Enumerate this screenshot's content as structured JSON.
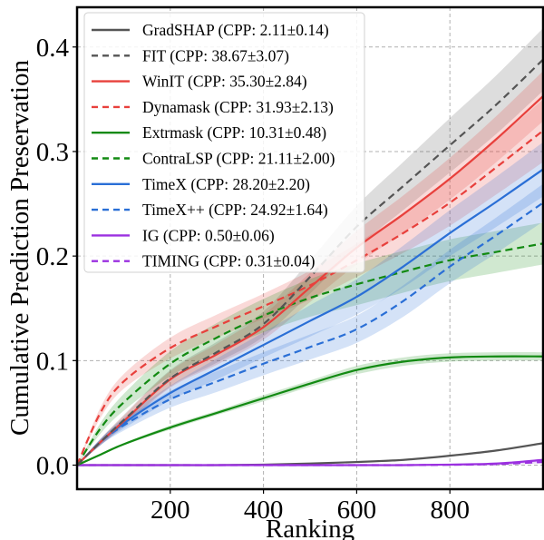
{
  "chart_data": {
    "type": "line",
    "title": "",
    "xlabel": "Ranking",
    "ylabel": "Cumulative Prediction Preservation",
    "xlim": [
      0,
      1000
    ],
    "ylim": [
      -0.023,
      0.438
    ],
    "xticks": [
      200,
      400,
      600,
      800
    ],
    "xtick_labels": [
      "200",
      "400",
      "600",
      "800"
    ],
    "yticks": [
      0.0,
      0.1,
      0.2,
      0.3,
      0.4
    ],
    "ytick_labels": [
      "0.0",
      "0.1",
      "0.2",
      "0.3",
      "0.4"
    ],
    "grid": true,
    "legend_position": "top-left",
    "x": [
      0,
      50,
      100,
      200,
      300,
      400,
      500,
      600,
      700,
      800,
      900,
      1000
    ],
    "series": [
      {
        "name": "GradSHAP (CPP: 2.11±0.14)",
        "color": "#555555",
        "dashed": false,
        "y": [
          0,
          0,
          0,
          0,
          0,
          0.0005,
          0.0015,
          0.003,
          0.005,
          0.009,
          0.014,
          0.021
        ],
        "std": [
          0,
          0,
          0,
          0,
          0,
          0,
          0,
          0,
          0,
          0.001,
          0.001,
          0.001
        ]
      },
      {
        "name": "FIT (CPP: 38.67±3.07)",
        "color": "#555555",
        "dashed": true,
        "y": [
          0,
          0.022,
          0.043,
          0.083,
          0.108,
          0.135,
          0.18,
          0.228,
          0.267,
          0.306,
          0.345,
          0.388
        ],
        "std": [
          0,
          0.003,
          0.005,
          0.008,
          0.01,
          0.012,
          0.016,
          0.02,
          0.023,
          0.026,
          0.028,
          0.03
        ]
      },
      {
        "name": "WinIT (CPP: 35.30±2.84)",
        "color": "#e8403c",
        "dashed": false,
        "y": [
          0,
          0.022,
          0.042,
          0.082,
          0.106,
          0.132,
          0.17,
          0.208,
          0.24,
          0.274,
          0.312,
          0.353
        ],
        "std": [
          0,
          0.003,
          0.005,
          0.008,
          0.01,
          0.012,
          0.014,
          0.016,
          0.018,
          0.02,
          0.022,
          0.024
        ]
      },
      {
        "name": "Dynamask (CPP: 31.93±2.13)",
        "color": "#e8403c",
        "dashed": true,
        "y": [
          0,
          0.05,
          0.08,
          0.112,
          0.133,
          0.152,
          0.172,
          0.196,
          0.222,
          0.251,
          0.285,
          0.32
        ],
        "std": [
          0,
          0.005,
          0.007,
          0.01,
          0.011,
          0.012,
          0.014,
          0.016,
          0.019,
          0.022,
          0.026,
          0.03
        ]
      },
      {
        "name": "Extrmask (CPP: 10.31±0.48)",
        "color": "#128a12",
        "dashed": false,
        "y": [
          0,
          0.01,
          0.02,
          0.036,
          0.05,
          0.064,
          0.078,
          0.091,
          0.099,
          0.103,
          0.104,
          0.104
        ],
        "std": [
          0,
          0.001,
          0.001,
          0.002,
          0.002,
          0.003,
          0.003,
          0.004,
          0.004,
          0.004,
          0.004,
          0.004
        ]
      },
      {
        "name": "ContraLSP (CPP: 21.11±2.00)",
        "color": "#128a12",
        "dashed": true,
        "y": [
          0,
          0.035,
          0.06,
          0.097,
          0.122,
          0.143,
          0.16,
          0.173,
          0.185,
          0.196,
          0.204,
          0.212
        ],
        "std": [
          0,
          0.005,
          0.008,
          0.012,
          0.014,
          0.016,
          0.018,
          0.02,
          0.02,
          0.02,
          0.02,
          0.02
        ]
      },
      {
        "name": "TimeX (CPP: 28.20±2.20)",
        "color": "#2a6fd6",
        "dashed": false,
        "y": [
          0,
          0.022,
          0.04,
          0.069,
          0.092,
          0.115,
          0.138,
          0.161,
          0.19,
          0.222,
          0.252,
          0.283
        ],
        "std": [
          0,
          0.003,
          0.005,
          0.007,
          0.01,
          0.012,
          0.015,
          0.017,
          0.02,
          0.022,
          0.024,
          0.026
        ]
      },
      {
        "name": "TimeX++ (CPP: 24.92±1.64)",
        "color": "#2a6fd6",
        "dashed": true,
        "y": [
          0,
          0.022,
          0.038,
          0.063,
          0.08,
          0.097,
          0.113,
          0.13,
          0.157,
          0.19,
          0.22,
          0.251
        ],
        "std": [
          0,
          0.003,
          0.005,
          0.008,
          0.01,
          0.011,
          0.012,
          0.013,
          0.015,
          0.016,
          0.017,
          0.018
        ]
      },
      {
        "name": "IG (CPP: 0.50±0.06)",
        "color": "#9b30e0",
        "dashed": false,
        "y": [
          0,
          0,
          0,
          0,
          0,
          0,
          0,
          0,
          0,
          0.0005,
          0.0015,
          0.005
        ],
        "std": [
          0,
          0,
          0,
          0,
          0,
          0,
          0,
          0,
          0,
          0,
          0.001,
          0.001
        ]
      },
      {
        "name": "TIMING (CPP: 0.31±0.04)",
        "color": "#9b30e0",
        "dashed": true,
        "y": [
          0,
          0,
          0,
          0,
          0,
          0,
          0,
          0,
          0,
          0.0003,
          0.001,
          0.003
        ],
        "std": [
          0,
          0,
          0,
          0,
          0,
          0,
          0,
          0,
          0,
          0,
          0.001,
          0.001
        ]
      }
    ]
  }
}
